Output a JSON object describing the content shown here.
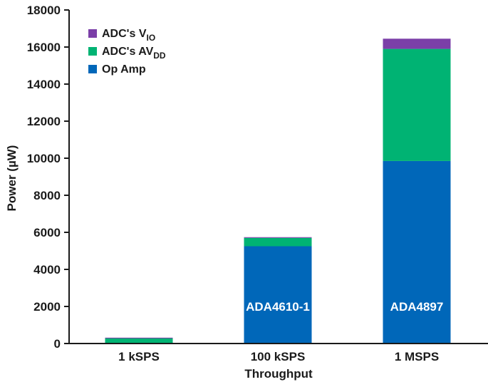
{
  "chart_data": {
    "type": "bar",
    "stacked": true,
    "title": "",
    "xlabel": "Throughput",
    "ylabel": "Power (µW)",
    "ylim": [
      0,
      18000
    ],
    "yticks": [
      0,
      2000,
      4000,
      6000,
      8000,
      10000,
      12000,
      14000,
      16000,
      18000
    ],
    "categories": [
      "1 kSPS",
      "100 kSPS",
      "1 MSPS"
    ],
    "series": [
      {
        "name": "Op Amp",
        "color": "#0067b9",
        "values": [
          0,
          5250,
          9850
        ]
      },
      {
        "name": "ADC's AVDD",
        "color": "#00b373",
        "values": [
          300,
          450,
          6050
        ]
      },
      {
        "name": "ADC's VIO",
        "color": "#7b3fa8",
        "values": [
          15,
          40,
          550
        ]
      }
    ],
    "legend": [
      {
        "base": "ADC's V",
        "sub": "IO",
        "color": "#7b3fa8"
      },
      {
        "base": "ADC's AV",
        "sub": "DD",
        "color": "#00b373"
      },
      {
        "base": "Op Amp",
        "sub": "",
        "color": "#0067b9"
      }
    ],
    "legend_position": "top-left",
    "bar_labels": [
      "",
      "ADA4610-1",
      "ADA4897"
    ],
    "grid": false
  }
}
